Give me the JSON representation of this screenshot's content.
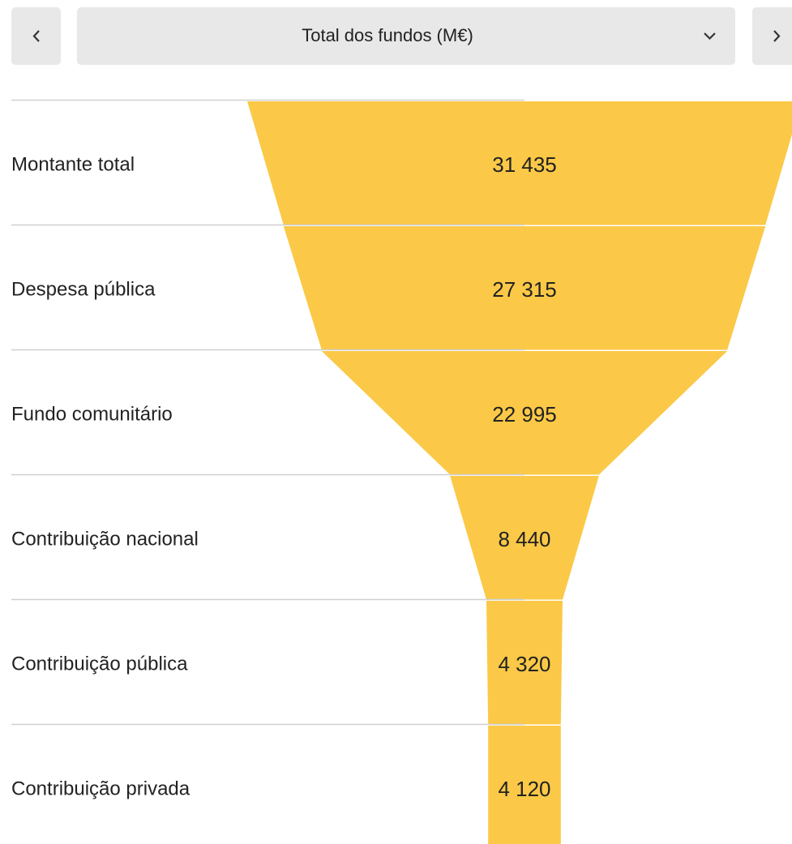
{
  "header": {
    "title": "Total dos fundos (M€)"
  },
  "chart_data": {
    "type": "funnel",
    "color": "#fbc947",
    "categories": [
      "Montante total",
      "Despesa pública",
      "Fundo comunitário",
      "Contribuição nacional",
      "Contribuição pública",
      "Contribuição privada"
    ],
    "values": [
      31435,
      27315,
      22995,
      8440,
      4320,
      4120
    ],
    "value_labels": [
      "31 435",
      "27 315",
      "22 995",
      "8 440",
      "4 320",
      "4 120"
    ]
  }
}
